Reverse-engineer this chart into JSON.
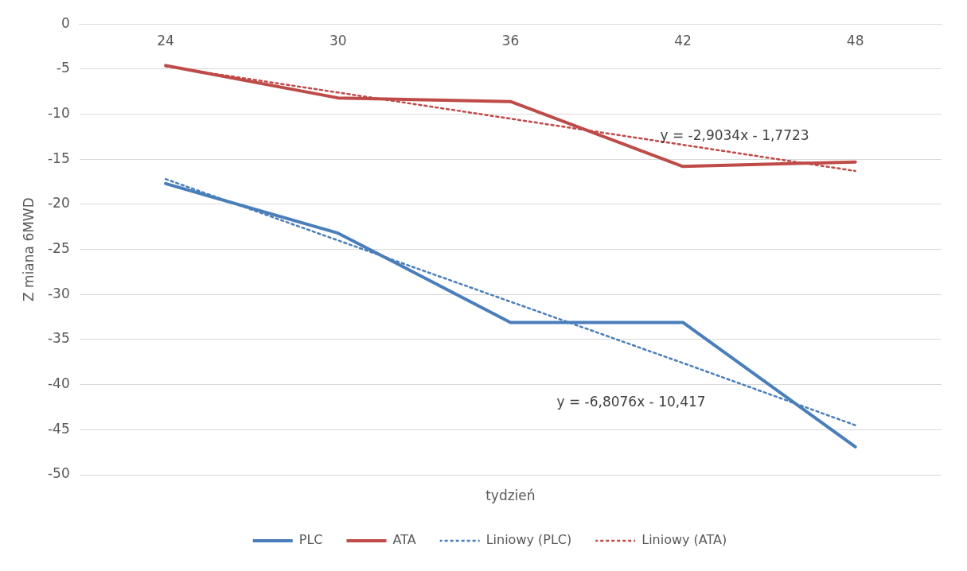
{
  "chart_data": {
    "type": "line",
    "xlabel": "tydzień",
    "ylabel": "Z miana 6MWD",
    "categories": [
      "24",
      "30",
      "36",
      "42",
      "48"
    ],
    "series": [
      {
        "name": "PLC",
        "color": "#4a7ebb",
        "values": [
          -17.7,
          -23.2,
          -33.1,
          -33.1,
          -46.9
        ],
        "line_style": "solid"
      },
      {
        "name": "ATA",
        "color": "#be4b48",
        "values": [
          -4.6,
          -8.2,
          -8.6,
          -15.8,
          -15.3
        ],
        "line_style": "solid"
      },
      {
        "name": "Liniowy (PLC)",
        "color": "#4a7ebb",
        "values": [
          -17.2,
          -24.0,
          -30.8,
          -37.6,
          -44.5
        ],
        "line_style": "dotted"
      },
      {
        "name": "Liniowy (ATA)",
        "color": "#be4b48",
        "values": [
          -4.7,
          -7.6,
          -10.5,
          -13.4,
          -16.3
        ],
        "line_style": "dotted"
      }
    ],
    "ylim": [
      -50,
      0
    ],
    "yticks": [
      0,
      -5,
      -10,
      -15,
      -20,
      -25,
      -30,
      -35,
      -40,
      -45,
      -50
    ],
    "grid": "y",
    "legend": "bottom",
    "marker": "none",
    "annotations": [
      "y = -2,9034x - 1,7723",
      "y = -6,8076x - 10,417"
    ]
  }
}
